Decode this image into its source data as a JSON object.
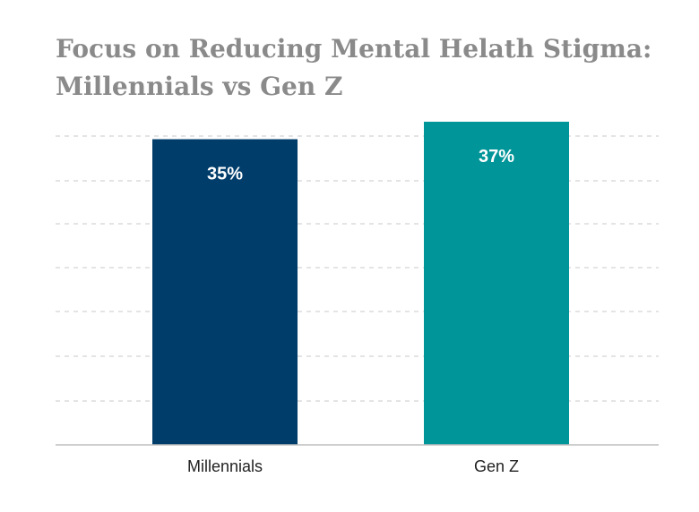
{
  "chart_data": {
    "type": "bar",
    "title_lines": [
      "Focus on Reducing Mental Helath Stigma:",
      "Millennials vs Gen Z"
    ],
    "categories": [
      "Millennials",
      "Gen Z"
    ],
    "values": [
      35,
      37
    ],
    "data_labels": [
      "35%",
      "37%"
    ],
    "colors": [
      "#003d6b",
      "#009599"
    ],
    "ylim": [
      0,
      37
    ],
    "grid": true,
    "xlabel": "",
    "ylabel": ""
  }
}
